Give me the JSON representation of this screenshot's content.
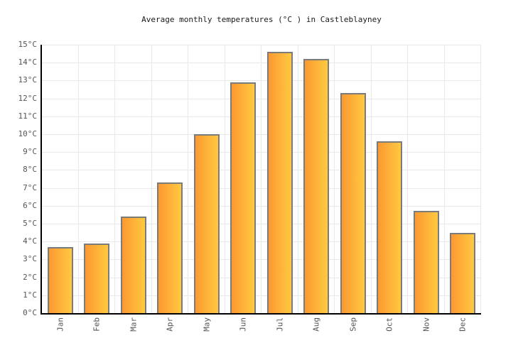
{
  "title": "Average monthly temperatures (°C ) in Castleblayney",
  "chart_data": {
    "type": "bar",
    "title": "Average monthly temperatures (°C ) in Castleblayney",
    "categories": [
      "Jan",
      "Feb",
      "Mar",
      "Apr",
      "May",
      "Jun",
      "Jul",
      "Aug",
      "Sep",
      "Oct",
      "Nov",
      "Dec"
    ],
    "values": [
      3.7,
      3.9,
      5.4,
      7.3,
      10.0,
      12.9,
      14.6,
      14.2,
      12.3,
      9.6,
      5.7,
      4.5
    ],
    "xlabel": "",
    "ylabel": "",
    "ylim": [
      0,
      15
    ],
    "y_tick_step": 1,
    "y_tick_suffix": "°C",
    "grid": true,
    "legend": "none",
    "colors": {
      "bar_gradient_left": "#fc9932",
      "bar_gradient_right": "#ffc940",
      "bar_border": "#7b7b7b",
      "gridline": "#e9e9e9",
      "axis": "#000000",
      "tick_label": "#555555",
      "title": "#1a1a1a",
      "background": "#ffffff"
    }
  }
}
